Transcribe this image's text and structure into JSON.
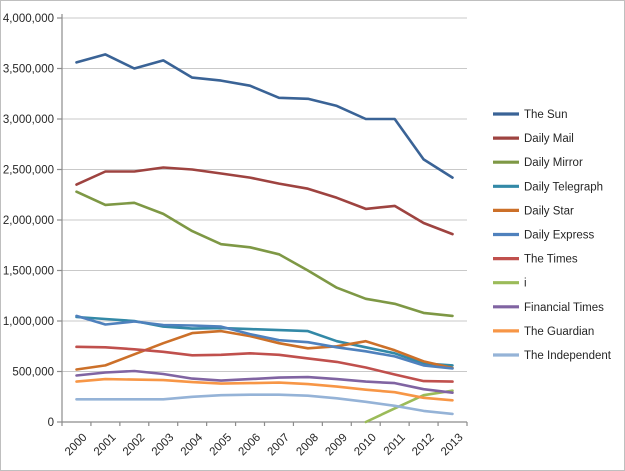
{
  "chart_data": {
    "type": "line",
    "title": "",
    "xlabel": "",
    "ylabel": "",
    "x_labels": [
      "2000",
      "2001",
      "2002",
      "2003",
      "2004",
      "2005",
      "2006",
      "2007",
      "2008",
      "2009",
      "2010",
      "2011",
      "2012",
      "2013"
    ],
    "ylim": [
      0,
      4000000
    ],
    "ytick_step": 500000,
    "ytick_labels": [
      "0",
      "500,000",
      "1,000,000",
      "1,500,000",
      "2,000,000",
      "2,500,000",
      "3,000,000",
      "3,500,000",
      "4,000,000"
    ],
    "grid": true,
    "legend_position": "right",
    "colors": {
      "gridline": "#c9c9c9",
      "axis": "#8c8c8c",
      "text": "#262626"
    },
    "series": [
      {
        "name": "The Sun",
        "color": "#3a6396",
        "values": [
          3560000,
          3640000,
          3500000,
          3580000,
          3410000,
          3380000,
          3330000,
          3210000,
          3200000,
          3130000,
          3000000,
          3000000,
          2600000,
          2420000
        ]
      },
      {
        "name": "Daily Mail",
        "color": "#9e4340",
        "values": [
          2350000,
          2480000,
          2480000,
          2520000,
          2500000,
          2460000,
          2420000,
          2360000,
          2310000,
          2220000,
          2110000,
          2140000,
          1970000,
          1860000
        ]
      },
      {
        "name": "Daily Mirror",
        "color": "#7e9845",
        "values": [
          2280000,
          2150000,
          2170000,
          2060000,
          1890000,
          1760000,
          1730000,
          1660000,
          1500000,
          1330000,
          1220000,
          1170000,
          1080000,
          1050000
        ]
      },
      {
        "name": "Daily Telegraph",
        "color": "#3389a7",
        "values": [
          1040000,
          1020000,
          1000000,
          945000,
          925000,
          930000,
          920000,
          910000,
          900000,
          800000,
          740000,
          680000,
          580000,
          560000
        ]
      },
      {
        "name": "Daily Star",
        "color": "#cc7029",
        "values": [
          520000,
          560000,
          670000,
          780000,
          880000,
          900000,
          850000,
          780000,
          730000,
          750000,
          800000,
          710000,
          600000,
          535000
        ]
      },
      {
        "name": "Daily Express",
        "color": "#4f81bd",
        "values": [
          1050000,
          965000,
          995000,
          960000,
          955000,
          945000,
          870000,
          810000,
          790000,
          740000,
          700000,
          650000,
          560000,
          530000
        ]
      },
      {
        "name": "The Times",
        "color": "#c0504d",
        "values": [
          745000,
          740000,
          720000,
          695000,
          660000,
          665000,
          680000,
          665000,
          630000,
          595000,
          540000,
          470000,
          405000,
          400000
        ]
      },
      {
        "name": "i",
        "color": "#9bbb59",
        "values": [
          null,
          null,
          null,
          null,
          null,
          null,
          null,
          null,
          null,
          null,
          0,
          135000,
          265000,
          310000
        ]
      },
      {
        "name": "Financial Times",
        "color": "#8064a2",
        "values": [
          460000,
          490000,
          505000,
          475000,
          430000,
          410000,
          425000,
          440000,
          445000,
          425000,
          400000,
          385000,
          325000,
          290000
        ]
      },
      {
        "name": "The Guardian",
        "color": "#f79646",
        "values": [
          400000,
          425000,
          420000,
          415000,
          395000,
          380000,
          385000,
          390000,
          375000,
          350000,
          320000,
          295000,
          240000,
          215000
        ]
      },
      {
        "name": "The Independent",
        "color": "#95b3d7",
        "values": [
          225000,
          225000,
          225000,
          225000,
          250000,
          265000,
          270000,
          270000,
          260000,
          235000,
          200000,
          160000,
          110000,
          80000
        ]
      }
    ]
  }
}
